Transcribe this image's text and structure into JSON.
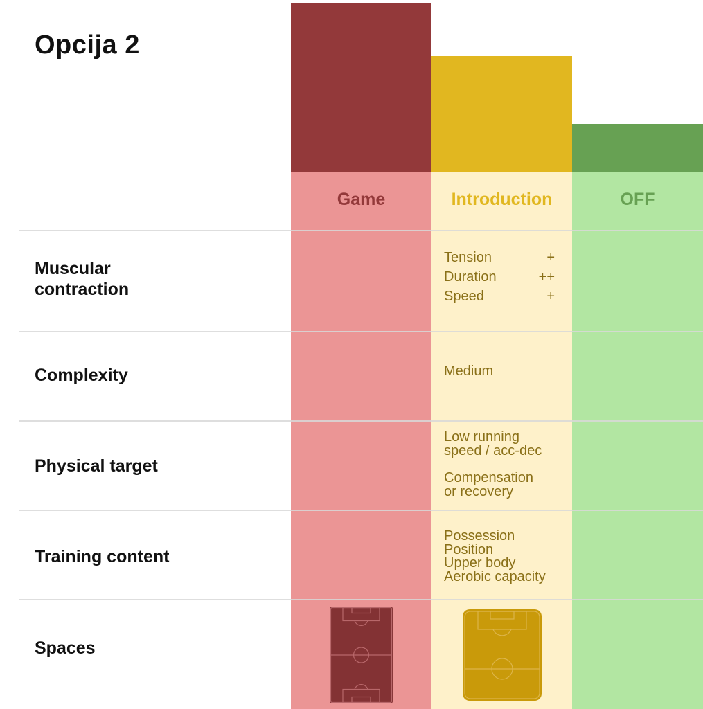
{
  "title": "Opcija 2",
  "columns": [
    {
      "key": "game",
      "label": "Game",
      "color": "#93393A",
      "fill": "#EB9595"
    },
    {
      "key": "introduction",
      "label": "Introduction",
      "color": "#E1B720",
      "fill": "#FEF1CA"
    },
    {
      "key": "off",
      "label": "OFF",
      "color": "#67A153",
      "fill": "#B2E6A2"
    }
  ],
  "rows": {
    "muscular_contraction": {
      "label_line1": "Muscular",
      "label_line2": "contraction",
      "intro": [
        {
          "name": "Tension",
          "level": "+"
        },
        {
          "name": "Duration",
          "level": "++"
        },
        {
          "name": "Speed",
          "level": "+"
        }
      ]
    },
    "complexity": {
      "label": "Complexity",
      "intro": "Medium"
    },
    "physical_target": {
      "label": "Physical target",
      "intro_line1": "Low running",
      "intro_line2": "speed / acc-dec",
      "intro_line3": "Compensation",
      "intro_line4": "or recovery"
    },
    "training_content": {
      "label": "Training content",
      "intro": [
        "Possession",
        "Position",
        "Upper body",
        "Aerobic capacity"
      ]
    },
    "spaces": {
      "label": "Spaces"
    }
  },
  "pitch_colors": {
    "game": "#833234",
    "introduction": "#C99A0A"
  }
}
